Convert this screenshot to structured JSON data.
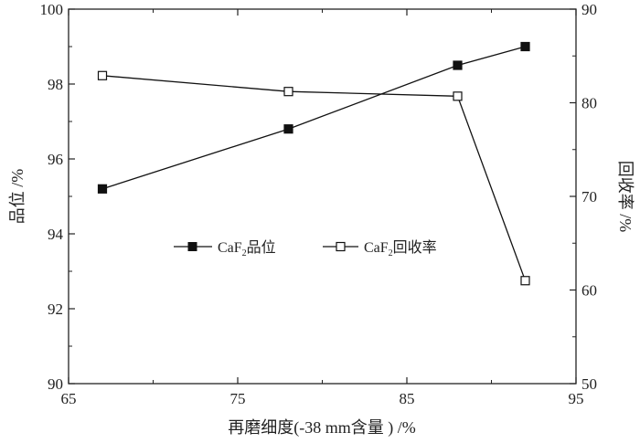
{
  "chart_data": {
    "type": "line",
    "xlabel": "再磨细度(-38 mm含量 ) /%",
    "ylabel_left": "品位 /%",
    "ylabel_right": "回收率 /%",
    "xlim": [
      65,
      95
    ],
    "ylim_left": [
      90,
      100
    ],
    "ylim_right": [
      50,
      90
    ],
    "xticks": [
      "65",
      "75",
      "85",
      "95"
    ],
    "yticks_left": [
      "90",
      "92",
      "94",
      "96",
      "98",
      "100"
    ],
    "yticks_right": [
      "50",
      "60",
      "70",
      "80",
      "90"
    ],
    "grid": false,
    "legend_position": "middle",
    "series": [
      {
        "name": "CaF2品位",
        "name_main": "CaF",
        "name_sub": "2",
        "name_suffix": "品位",
        "axis": "left",
        "marker": "filled-square",
        "x": [
          67,
          78,
          88,
          92
        ],
        "y": [
          95.2,
          96.8,
          98.5,
          99.0
        ]
      },
      {
        "name": "CaF2回收率",
        "name_main": "CaF",
        "name_sub": "2",
        "name_suffix": "回收率",
        "axis": "right",
        "marker": "open-square",
        "x": [
          67,
          78,
          88,
          92
        ],
        "y": [
          82.9,
          81.2,
          80.7,
          61.0
        ]
      }
    ]
  }
}
